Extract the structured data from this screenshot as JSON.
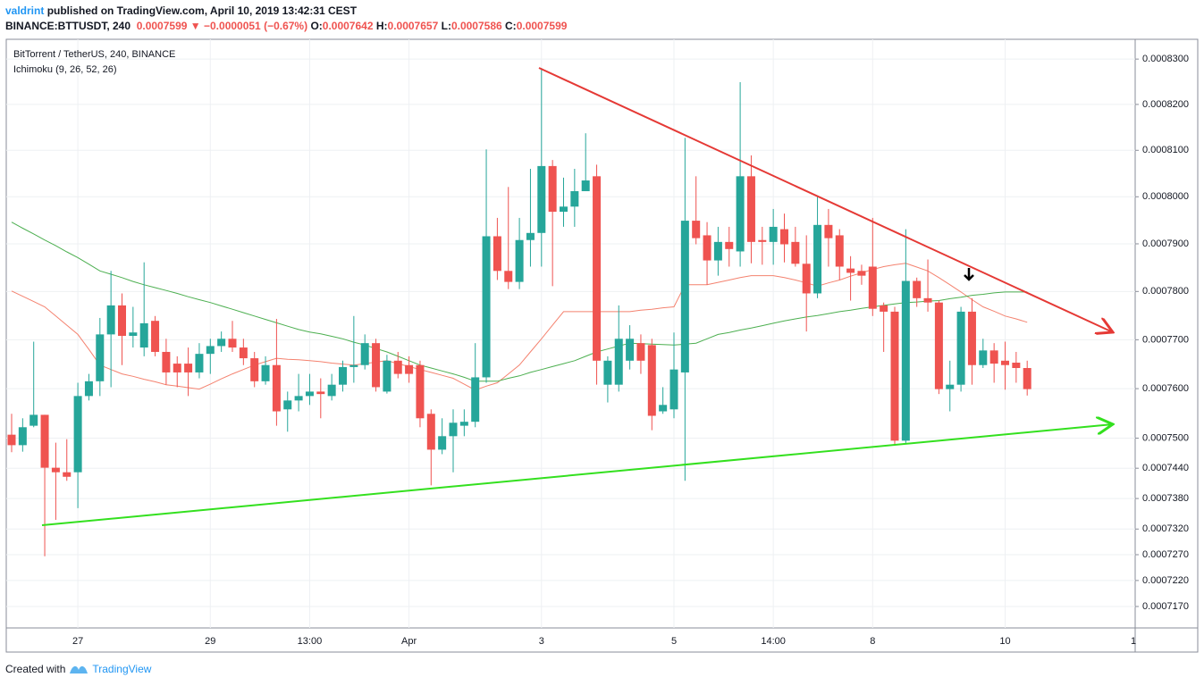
{
  "header": {
    "author": "valdrint",
    "published": "published on TradingView.com, April 10, 2019 13:42:31 CEST",
    "symbol": "BINANCE:BTTUSDT, 240",
    "last": "0.0007599",
    "arrow": "▼",
    "change": "−0.0000051 (−0.67%)",
    "ohlc": [
      {
        "label": "O:",
        "value": "0.0007642"
      },
      {
        "label": "H:",
        "value": "0.0007657"
      },
      {
        "label": "L:",
        "value": "0.0007586"
      },
      {
        "label": "C:",
        "value": "0.0007599"
      }
    ]
  },
  "chart_data": {
    "type": "candlestick",
    "title": "BitTorrent / TetherUS, 240, BINANCE",
    "indicator": "Ichimoku (9, 26, 52, 26)",
    "categories": [
      null,
      null,
      null,
      null,
      null,
      null,
      "27",
      null,
      null,
      null,
      null,
      null,
      null,
      null,
      null,
      null,
      null,
      null,
      "29",
      null,
      null,
      null,
      null,
      null,
      null,
      null,
      null,
      "13:00",
      null,
      null,
      null,
      null,
      null,
      null,
      null,
      null,
      "Apr",
      null,
      null,
      null,
      null,
      null,
      null,
      null,
      null,
      null,
      null,
      null,
      "3",
      null,
      null,
      null,
      null,
      null,
      null,
      null,
      null,
      null,
      null,
      null,
      "5",
      null,
      null,
      null,
      null,
      null,
      null,
      null,
      null,
      "14:00",
      null,
      null,
      null,
      null,
      null,
      null,
      null,
      null,
      "8",
      null,
      null,
      null,
      null,
      null,
      null,
      null,
      null,
      null,
      null,
      null,
      "10",
      null,
      null,
      null,
      null,
      null,
      null,
      null,
      null,
      null,
      null,
      null,
      "1"
    ],
    "open": [
      0.0007507,
      0.0007486,
      0.0007525,
      0.0007547,
      0.0007441,
      0.0007432,
      0.0007432,
      0.0007585,
      0.0007615,
      0.0007711,
      0.0007771,
      0.0007708,
      0.0007684,
      0.0007739,
      0.0007675,
      0.0007651,
      0.0007651,
      0.0007633,
      0.0007671,
      0.0007687,
      0.0007702,
      0.0007684,
      0.0007662,
      0.0007615,
      0.0007648,
      0.0007558,
      0.0007576,
      0.0007585,
      0.0007594,
      0.0007585,
      0.0007608,
      0.0007644,
      0.0007648,
      0.0007693,
      0.0007594,
      0.0007657,
      0.0007648,
      0.0007648,
      0.0007549,
      0.0007477,
      0.0007504,
      0.0007525,
      0.0007533,
      0.0007623,
      0.0007916,
      0.0007843,
      0.000782,
      0.0007908,
      0.0007923,
      0.0008066,
      0.0007968,
      0.0007979,
      0.0008012,
      0.0008044,
      0.0007608,
      0.0007608,
      0.0007657,
      0.0007693,
      0.0007689,
      0.0007554,
      0.0007558,
      0.0007633,
      0.0007949,
      0.0007918,
      0.0007865,
      0.0007904,
      0.0007884,
      0.0008044,
      0.0007908,
      0.0007904,
      0.0007931,
      0.0007904,
      0.0007858,
      0.0007796,
      0.000794,
      0.0007918,
      0.0007848,
      0.0007843,
      0.0007852,
      0.0007771,
      0.0007758,
      0.0007495,
      0.0007822,
      0.0007786,
      0.0007777,
      0.0007599,
      0.0007608,
      0.0007758,
      0.0007648,
      0.0007678,
      0.0007657,
      0.0007653,
      0.0007642,
      null,
      null,
      null,
      null,
      null,
      null,
      null,
      null,
      null,
      null
    ],
    "high": [
      0.0007549,
      0.000754,
      0.0007696,
      0.0007547,
      0.0007491,
      0.0007498,
      0.0007612,
      0.000763,
      0.0007745,
      0.0007843,
      0.0007796,
      0.0007768,
      0.0007861,
      0.0007749,
      0.0007702,
      0.0007666,
      0.0007684,
      0.0007693,
      0.0007702,
      0.0007717,
      0.0007739,
      0.0007702,
      0.0007675,
      0.0007666,
      0.0007743,
      0.0007594,
      0.000763,
      0.000763,
      0.0007621,
      0.000763,
      0.0007657,
      0.0007749,
      0.0007711,
      0.0007702,
      0.0007669,
      0.0007675,
      0.0007666,
      0.0007657,
      0.0007558,
      0.000754,
      0.0007558,
      0.0007558,
      0.0007693,
      0.0008102,
      0.0007955,
      0.0008021,
      0.0007955,
      0.000806,
      0.000828,
      0.0008079,
      0.0008041,
      0.000806,
      0.0008137,
      0.0008069,
      0.0007666,
      0.0007771,
      0.000773,
      0.0007711,
      0.0007702,
      0.0007603,
      0.0007715,
      0.0008127,
      0.0008044,
      0.0007946,
      0.0007936,
      0.0007936,
      0.0008249,
      0.0008089,
      0.0007936,
      0.0007974,
      0.0007964,
      0.0007936,
      0.0007918,
      0.0008002,
      0.0007974,
      0.0007931,
      0.0007874,
      0.0007856,
      0.0007955,
      0.0007777,
      0.0007768,
      0.0007931,
      0.0007829,
      0.0007867,
      0.0007781,
      0.0007657,
      0.0007768,
      0.0007786,
      0.0007702,
      0.0007693,
      0.0007696,
      0.0007675,
      0.0007657,
      null,
      null,
      null,
      null,
      null,
      null,
      null,
      null,
      null,
      null
    ],
    "low": [
      0.0007472,
      0.0007473,
      0.0007522,
      0.0007267,
      0.0007338,
      0.0007415,
      0.0007361,
      0.0007576,
      0.0007585,
      0.0007603,
      0.0007648,
      0.0007684,
      0.0007666,
      0.0007666,
      0.0007608,
      0.0007603,
      0.0007585,
      0.0007621,
      0.000763,
      0.0007675,
      0.0007675,
      0.0007648,
      0.0007603,
      0.0007608,
      0.0007525,
      0.0007513,
      0.0007554,
      0.0007567,
      0.000754,
      0.0007576,
      0.0007594,
      0.0007612,
      0.0007639,
      0.0007594,
      0.000759,
      0.0007621,
      0.0007612,
      0.0007522,
      0.0007406,
      0.0007468,
      0.0007432,
      0.0007504,
      0.0007522,
      0.0007612,
      0.0007824,
      0.0007805,
      0.0007805,
      0.0007852,
      0.0007852,
      0.0007811,
      0.0007936,
      0.0007936,
      0.0008012,
      0.0007608,
      0.0007572,
      0.0007594,
      0.0007639,
      0.000763,
      0.0007516,
      0.0007549,
      0.000754,
      0.0007415,
      0.0007899,
      0.0007814,
      0.0007833,
      0.0007852,
      0.0007852,
      0.0007859,
      0.0007856,
      0.0007856,
      0.0007861,
      0.0007852,
      0.0007717,
      0.0007786,
      0.0007852,
      0.0007824,
      0.0007781,
      0.0007814,
      0.0007749,
      0.0007675,
      0.0007486,
      0.0007489,
      0.0007768,
      0.0007758,
      0.0007589,
      0.0007554,
      0.0007594,
      0.0007608,
      0.0007642,
      0.0007612,
      0.0007598,
      0.0007612,
      0.0007586,
      null,
      null,
      null,
      null,
      null,
      null,
      null,
      null,
      null,
      null
    ],
    "close": [
      0.0007486,
      0.0007522,
      0.0007547,
      0.0007441,
      0.0007432,
      0.0007423,
      0.0007585,
      0.0007615,
      0.0007711,
      0.0007771,
      0.0007708,
      0.0007715,
      0.0007734,
      0.0007675,
      0.0007633,
      0.0007633,
      0.0007633,
      0.0007671,
      0.0007687,
      0.0007702,
      0.0007684,
      0.0007662,
      0.0007615,
      0.0007648,
      0.0007554,
      0.0007576,
      0.0007585,
      0.0007594,
      0.0007589,
      0.0007608,
      0.0007644,
      0.0007648,
      0.0007693,
      0.0007603,
      0.0007657,
      0.000763,
      0.000763,
      0.000754,
      0.0007477,
      0.0007504,
      0.0007531,
      0.0007533,
      0.0007623,
      0.0007916,
      0.0007843,
      0.000782,
      0.0007908,
      0.0007923,
      0.0008066,
      0.0007968,
      0.0007979,
      0.0008012,
      0.0008035,
      0.0007657,
      0.0007657,
      0.0007702,
      0.0007702,
      0.0007657,
      0.0007545,
      0.0007567,
      0.0007639,
      0.0007949,
      0.0007912,
      0.0007865,
      0.0007904,
      0.0007889,
      0.0008044,
      0.0007904,
      0.0007904,
      0.0007936,
      0.0007899,
      0.0007858,
      0.0007796,
      0.000794,
      0.0007912,
      0.0007852,
      0.0007839,
      0.0007833,
      0.0007764,
      0.0007758,
      0.0007495,
      0.0007822,
      0.0007786,
      0.0007777,
      0.0007599,
      0.0007608,
      0.0007758,
      0.0007648,
      0.0007678,
      0.0007651,
      0.0007648,
      0.0007642,
      0.0007599,
      null,
      null,
      null,
      null,
      null,
      null,
      null,
      null,
      null,
      null
    ],
    "up_color": "#26a69a",
    "down_color": "#ef5350",
    "lines": [
      {
        "color": "#f4826f",
        "values": [
          0.0007801,
          0.000779,
          0.0007779,
          0.0007768,
          0.0007749,
          0.000773,
          0.0007711,
          0.000768,
          0.0007648,
          0.0007639,
          0.000763,
          0.0007625,
          0.0007619,
          0.0007614,
          0.0007608,
          0.0007605,
          0.0007602,
          0.0007599,
          0.0007609,
          0.000762,
          0.000763,
          0.0007639,
          0.0007648,
          0.0007655,
          0.0007662,
          0.000766,
          0.0007659,
          0.0007657,
          0.0007655,
          0.0007652,
          0.000765,
          0.0007648,
          0.0007651,
          0.0007654,
          0.0007657,
          0.0007651,
          0.0007645,
          0.0007639,
          0.0007633,
          0.0007627,
          0.0007621,
          0.0007609,
          0.0007597,
          0.0007605,
          0.0007612,
          0.000763,
          0.0007648,
          0.0007675,
          0.0007702,
          0.000773,
          0.0007758,
          0.0007758,
          0.0007758,
          0.0007758,
          0.0007758,
          0.0007758,
          0.0007758,
          0.0007761,
          0.0007763,
          0.0007766,
          0.0007768,
          0.0007814,
          0.0007814,
          0.0007814,
          0.0007819,
          0.0007824,
          0.0007829,
          0.0007833,
          0.0007833,
          0.0007833,
          0.0007829,
          0.0007824,
          0.0007818,
          0.0007811,
          0.0007818,
          0.0007824,
          0.0007832,
          0.0007839,
          0.0007846,
          0.0007852,
          0.0007856,
          0.0007859,
          0.0007851,
          0.0007843,
          0.0007829,
          0.0007814,
          0.0007799,
          0.0007783,
          0.0007768,
          0.0007759,
          0.0007749,
          0.0007743,
          0.0007736,
          null,
          null,
          null,
          null,
          null,
          null,
          null,
          null,
          null,
          null
        ]
      },
      {
        "color": "#4caf50",
        "values": [
          0.0007946,
          0.0007933,
          0.0007921,
          0.0007908,
          0.0007896,
          0.0007883,
          0.0007871,
          0.0007857,
          0.0007843,
          0.0007836,
          0.0007829,
          0.0007821,
          0.0007814,
          0.0007808,
          0.0007802,
          0.0007796,
          0.0007789,
          0.0007783,
          0.0007777,
          0.000777,
          0.0007763,
          0.0007756,
          0.0007749,
          0.0007742,
          0.0007735,
          0.0007728,
          0.0007721,
          0.0007716,
          0.0007712,
          0.0007707,
          0.0007702,
          0.0007695,
          0.0007689,
          0.0007682,
          0.0007675,
          0.0007666,
          0.0007657,
          0.0007648,
          0.0007642,
          0.0007636,
          0.000763,
          0.0007623,
          0.0007615,
          0.0007615,
          0.0007615,
          0.0007621,
          0.0007626,
          0.0007633,
          0.0007639,
          0.0007645,
          0.0007651,
          0.0007657,
          0.0007666,
          0.0007675,
          0.0007681,
          0.0007687,
          0.0007693,
          0.0007692,
          0.0007691,
          0.000769,
          0.0007689,
          0.0007691,
          0.0007693,
          0.0007702,
          0.0007711,
          0.0007715,
          0.000772,
          0.0007724,
          0.0007729,
          0.0007734,
          0.0007739,
          0.0007743,
          0.0007747,
          0.000775,
          0.0007754,
          0.0007758,
          0.0007761,
          0.0007765,
          0.0007768,
          0.0007771,
          0.0007774,
          0.0007777,
          0.0007778,
          0.000778,
          0.0007781,
          0.0007785,
          0.0007788,
          0.0007792,
          0.0007794,
          0.0007797,
          0.0007799,
          0.0007799,
          0.0007799,
          null,
          null,
          null,
          null,
          null,
          null,
          null,
          null,
          null,
          null
        ]
      }
    ],
    "ylim": [
      0.0007129,
      0.0008344
    ],
    "log_scale": true,
    "grid": true,
    "yticks": [
      {
        "value": 0.00083,
        "label": "0.0008300"
      },
      {
        "value": 0.00082,
        "label": "0.0008200"
      },
      {
        "value": 0.00081,
        "label": "0.0008100"
      },
      {
        "value": 0.0008,
        "label": "0.0008000"
      },
      {
        "value": 0.00079,
        "label": "0.0007900"
      },
      {
        "value": 0.00078,
        "label": "0.0007800"
      },
      {
        "value": 0.00077,
        "label": "0.0007700"
      },
      {
        "value": 0.00076,
        "label": "0.0007600"
      },
      {
        "value": 0.00075,
        "label": "0.0007500"
      },
      {
        "value": 0.000744,
        "label": "0.0007440"
      },
      {
        "value": 0.000738,
        "label": "0.0007380"
      },
      {
        "value": 0.000732,
        "label": "0.0007320"
      },
      {
        "value": 0.000727,
        "label": "0.0007270"
      },
      {
        "value": 0.000722,
        "label": "0.0007220"
      },
      {
        "value": 0.000717,
        "label": "0.0007170"
      }
    ]
  },
  "footer": {
    "text": "Created with",
    "brand": "TradingView"
  }
}
